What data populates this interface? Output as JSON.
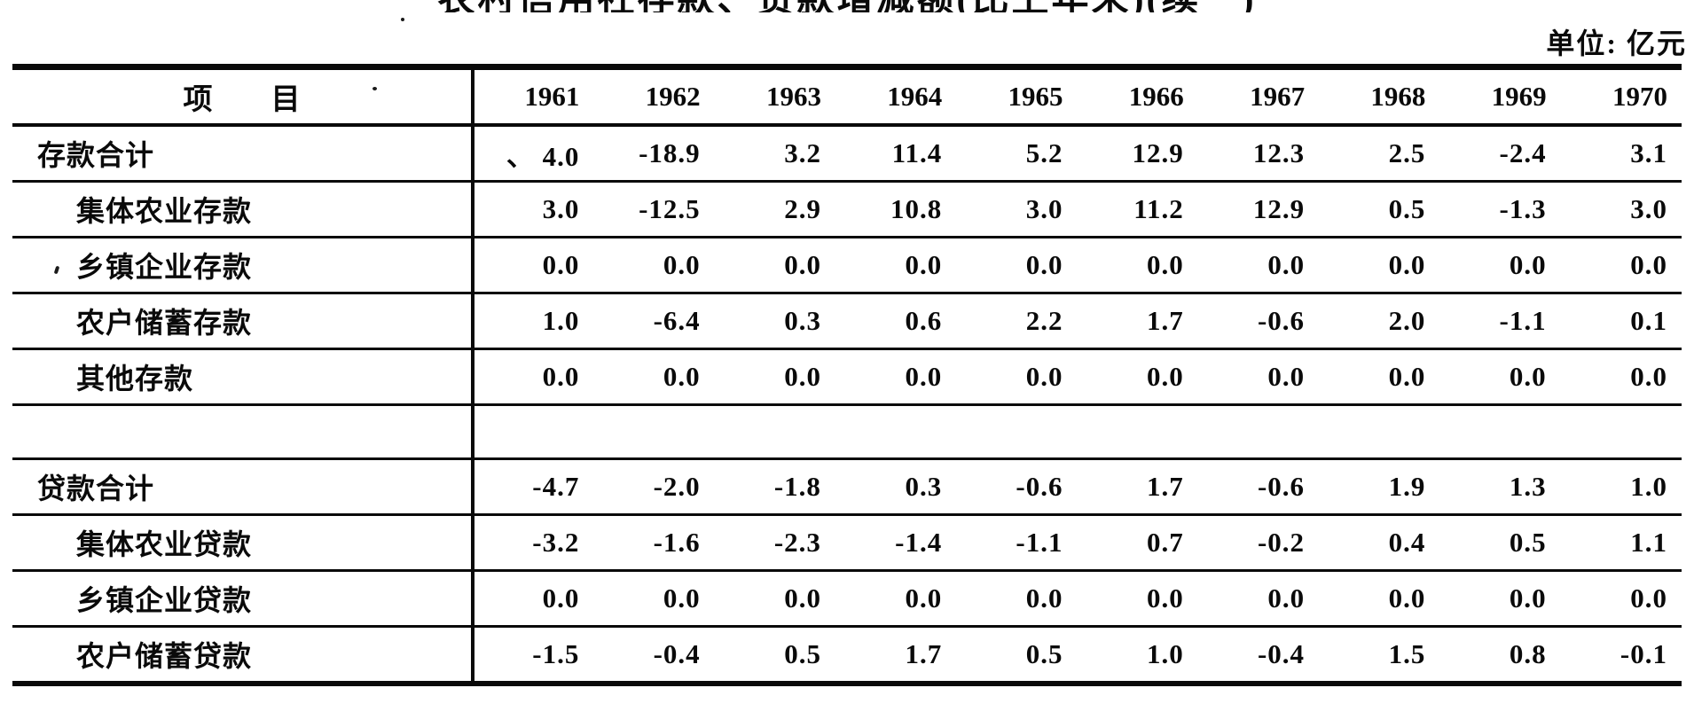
{
  "page": {
    "title": "农村信用社存款、贷款增减额(比上年末)(续一)",
    "unit_label": "单位: 亿元"
  },
  "table": {
    "header": {
      "item_label": "项        目",
      "years": [
        "1961",
        "1962",
        "1963",
        "1964",
        "1965",
        "1966",
        "1967",
        "1968",
        "1969",
        "1970"
      ]
    },
    "rows": [
      {
        "label": "存款合计",
        "indent": 0,
        "spacer": false,
        "values": [
          "、 4.0",
          "-18.9",
          "3.2",
          "11.4",
          "5.2",
          "12.9",
          "12.3",
          "2.5",
          "-2.4",
          "3.1"
        ]
      },
      {
        "label": "集体农业存款",
        "indent": 1,
        "spacer": false,
        "values": [
          "3.0",
          "-12.5",
          "2.9",
          "10.8",
          "3.0",
          "11.2",
          "12.9",
          "0.5",
          "-1.3",
          "3.0"
        ]
      },
      {
        "label": "乡镇企业存款",
        "indent": 1,
        "spacer": false,
        "values": [
          "0.0",
          "0.0",
          "0.0",
          "0.0",
          "0.0",
          "0.0",
          "0.0",
          "0.0",
          "0.0",
          "0.0"
        ]
      },
      {
        "label": "农户储蓄存款",
        "indent": 1,
        "spacer": false,
        "values": [
          "1.0",
          "-6.4",
          "0.3",
          "0.6",
          "2.2",
          "1.7",
          "-0.6",
          "2.0",
          "-1.1",
          "0.1"
        ]
      },
      {
        "label": "其他存款",
        "indent": 1,
        "spacer": false,
        "values": [
          "0.0",
          "0.0",
          "0.0",
          "0.0",
          "0.0",
          "0.0",
          "0.0",
          "0.0",
          "0.0",
          "0.0"
        ]
      },
      {
        "label": "",
        "indent": 0,
        "spacer": true,
        "values": [
          "",
          "",
          "",
          "",
          "",
          "",
          "",
          "",
          "",
          ""
        ]
      },
      {
        "label": "贷款合计",
        "indent": 0,
        "spacer": false,
        "values": [
          "-4.7",
          "-2.0",
          "-1.8",
          "0.3",
          "-0.6",
          "1.7",
          "-0.6",
          "1.9",
          "1.3",
          "1.0"
        ]
      },
      {
        "label": "集体农业贷款",
        "indent": 1,
        "spacer": false,
        "values": [
          "-3.2",
          "-1.6",
          "-2.3",
          "-1.4",
          "-1.1",
          "0.7",
          "-0.2",
          "0.4",
          "0.5",
          "1.1"
        ]
      },
      {
        "label": "乡镇企业贷款",
        "indent": 1,
        "spacer": false,
        "values": [
          "0.0",
          "0.0",
          "0.0",
          "0.0",
          "0.0",
          "0.0",
          "0.0",
          "0.0",
          "0.0",
          "0.0"
        ]
      },
      {
        "label": "农户储蓄贷款",
        "indent": 1,
        "spacer": false,
        "values": [
          "-1.5",
          "-0.4",
          "0.5",
          "1.7",
          "0.5",
          "1.0",
          "-0.4",
          "1.5",
          "0.8",
          "-0.1"
        ]
      }
    ]
  },
  "chart_data": {
    "type": "table",
    "title": "农村信用社存款、贷款增减额(比上年末)(续一)",
    "unit": "亿元",
    "columns": [
      "1961",
      "1962",
      "1963",
      "1964",
      "1965",
      "1966",
      "1967",
      "1968",
      "1969",
      "1970"
    ],
    "series": [
      {
        "name": "存款合计",
        "values": [
          4.0,
          -18.9,
          3.2,
          11.4,
          5.2,
          12.9,
          12.3,
          2.5,
          -2.4,
          3.1
        ]
      },
      {
        "name": "集体农业存款",
        "values": [
          3.0,
          -12.5,
          2.9,
          10.8,
          3.0,
          11.2,
          12.9,
          0.5,
          -1.3,
          3.0
        ]
      },
      {
        "name": "乡镇企业存款",
        "values": [
          0.0,
          0.0,
          0.0,
          0.0,
          0.0,
          0.0,
          0.0,
          0.0,
          0.0,
          0.0
        ]
      },
      {
        "name": "农户储蓄存款",
        "values": [
          1.0,
          -6.4,
          0.3,
          0.6,
          2.2,
          1.7,
          -0.6,
          2.0,
          -1.1,
          0.1
        ]
      },
      {
        "name": "其他存款",
        "values": [
          0.0,
          0.0,
          0.0,
          0.0,
          0.0,
          0.0,
          0.0,
          0.0,
          0.0,
          0.0
        ]
      },
      {
        "name": "贷款合计",
        "values": [
          -4.7,
          -2.0,
          -1.8,
          0.3,
          -0.6,
          1.7,
          -0.6,
          1.9,
          1.3,
          1.0
        ]
      },
      {
        "name": "集体农业贷款",
        "values": [
          -3.2,
          -1.6,
          -2.3,
          -1.4,
          -1.1,
          0.7,
          -0.2,
          0.4,
          0.5,
          1.1
        ]
      },
      {
        "name": "乡镇企业贷款",
        "values": [
          0.0,
          0.0,
          0.0,
          0.0,
          0.0,
          0.0,
          0.0,
          0.0,
          0.0,
          0.0
        ]
      },
      {
        "name": "农户储蓄贷款",
        "values": [
          -1.5,
          -0.4,
          0.5,
          1.7,
          0.5,
          1.0,
          -0.4,
          1.5,
          0.8,
          -0.1
        ]
      }
    ]
  }
}
